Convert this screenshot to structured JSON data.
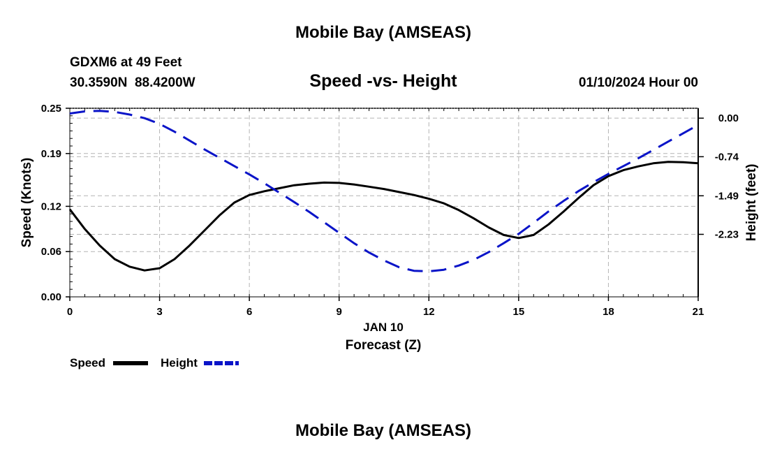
{
  "page": {
    "top_title": "Mobile Bay (AMSEAS)",
    "bottom_title": "Mobile Bay (AMSEAS)"
  },
  "station": {
    "name_line": "GDXM6 at 49 Feet",
    "coords_line": "30.3590N  88.4200W"
  },
  "date_line": "01/10/2024 Hour 00",
  "colors": {
    "speed": "#000000",
    "height": "#0a14c8",
    "grid": "#b4b4b4"
  },
  "chart_data": {
    "type": "line",
    "title": "Speed -vs- Height",
    "xlabel": "Forecast (Z)",
    "xdate_label": "JAN 10",
    "ylabel": "Speed (Knots)",
    "y2label": "Height (feet)",
    "xlim": [
      0,
      21
    ],
    "xticks": [
      0,
      3,
      6,
      9,
      12,
      15,
      18,
      21
    ],
    "ylim": [
      0,
      0.25
    ],
    "yticks": [
      0.0,
      0.06,
      0.12,
      0.19,
      0.25
    ],
    "ytick_labels": [
      "0.00",
      "0.06",
      "0.12",
      "0.19",
      "0.25"
    ],
    "y2lim": [
      -3.43,
      0.19
    ],
    "y2ticks": [
      0.0,
      -0.74,
      -1.49,
      -2.23
    ],
    "y2tick_labels": [
      "0.00",
      "-0.74",
      "-1.49",
      "-2.23"
    ],
    "grid": true,
    "series": [
      {
        "name": "Speed",
        "axis": "left",
        "style": "solid",
        "x": [
          0,
          0.5,
          1,
          1.5,
          2,
          2.5,
          3,
          3.5,
          4,
          4.5,
          5,
          5.5,
          6,
          6.5,
          7,
          7.5,
          8,
          8.5,
          9,
          9.5,
          10,
          10.5,
          11,
          11.5,
          12,
          12.5,
          13,
          13.5,
          14,
          14.5,
          15,
          15.5,
          16,
          16.5,
          17,
          17.5,
          18,
          18.5,
          19,
          19.5,
          20,
          20.5,
          21
        ],
        "y": [
          0.116,
          0.09,
          0.068,
          0.05,
          0.04,
          0.035,
          0.038,
          0.05,
          0.068,
          0.088,
          0.108,
          0.125,
          0.135,
          0.14,
          0.144,
          0.148,
          0.15,
          0.1515,
          0.151,
          0.149,
          0.146,
          0.143,
          0.139,
          0.135,
          0.13,
          0.124,
          0.115,
          0.104,
          0.092,
          0.082,
          0.078,
          0.082,
          0.096,
          0.113,
          0.131,
          0.148,
          0.16,
          0.168,
          0.173,
          0.177,
          0.179,
          0.1785,
          0.177
        ]
      },
      {
        "name": "Height",
        "axis": "right",
        "style": "dashed",
        "x": [
          0,
          0.5,
          1,
          1.5,
          2,
          2.5,
          3,
          3.5,
          4,
          4.5,
          5,
          5.5,
          6,
          6.5,
          7,
          7.5,
          8,
          8.5,
          9,
          9.5,
          10,
          10.5,
          11,
          11.5,
          12,
          12.5,
          13,
          13.5,
          14,
          14.5,
          15,
          15.5,
          16,
          16.5,
          17,
          17.5,
          18,
          18.5,
          19,
          19.5,
          20,
          20.5,
          21
        ],
        "y": [
          0.09,
          0.13,
          0.14,
          0.12,
          0.07,
          0.0,
          -0.11,
          -0.26,
          -0.43,
          -0.6,
          -0.76,
          -0.92,
          -1.08,
          -1.25,
          -1.43,
          -1.61,
          -1.8,
          -2.0,
          -2.2,
          -2.4,
          -2.58,
          -2.73,
          -2.86,
          -2.93,
          -2.94,
          -2.91,
          -2.83,
          -2.72,
          -2.57,
          -2.4,
          -2.22,
          -2.01,
          -1.79,
          -1.59,
          -1.4,
          -1.23,
          -1.07,
          -0.92,
          -0.77,
          -0.61,
          -0.45,
          -0.29,
          -0.13
        ]
      }
    ],
    "legend": {
      "position": "bottom-left",
      "entries": [
        "Speed",
        "Height"
      ]
    }
  }
}
